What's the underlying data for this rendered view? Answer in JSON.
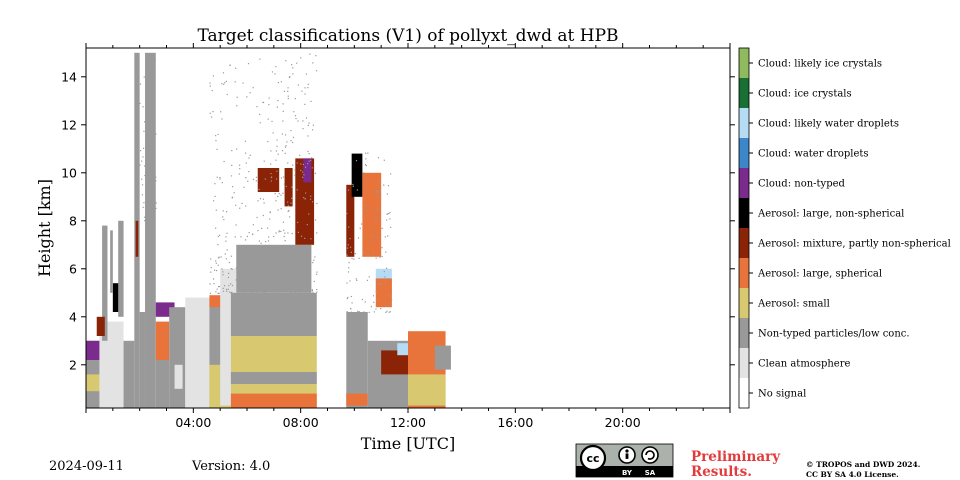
{
  "chart_data": {
    "type": "heatmap",
    "title": "Target classifications (V1) of pollyxt_dwd at HPB",
    "xlabel": "Time [UTC]",
    "ylabel": "Height [km]",
    "xlim_hours": [
      0,
      24
    ],
    "ylim_km": [
      0.2,
      15.2
    ],
    "x_ticks": [
      "04:00",
      "08:00",
      "12:00",
      "16:00",
      "20:00"
    ],
    "x_tick_hours": [
      4,
      8,
      12,
      16,
      20
    ],
    "y_ticks": [
      "2",
      "4",
      "6",
      "8",
      "10",
      "12",
      "14"
    ],
    "y_tick_values": [
      2,
      4,
      6,
      8,
      10,
      12,
      14
    ],
    "legend_position": "right colorbar",
    "categories": [
      {
        "label": "No signal",
        "color": "#ffffff"
      },
      {
        "label": "Clean atmosphere",
        "color": "#e3e3e3"
      },
      {
        "label": "Non-typed particles/low conc.",
        "color": "#999999"
      },
      {
        "label": "Aerosol: small",
        "color": "#d8c86f"
      },
      {
        "label": "Aerosol: large, spherical",
        "color": "#e8743b"
      },
      {
        "label": "Aerosol: mixture, partly non-spherical",
        "color": "#8b2307"
      },
      {
        "label": "Aerosol: large, non-spherical",
        "color": "#000000"
      },
      {
        "label": "Cloud: non-typed",
        "color": "#7b2a8e"
      },
      {
        "label": "Cloud: water droplets",
        "color": "#3c87c9"
      },
      {
        "label": "Cloud: likely water droplets",
        "color": "#b6dcf5"
      },
      {
        "label": "Cloud: ice crystals",
        "color": "#187035"
      },
      {
        "label": "Cloud: likely ice crystals",
        "color": "#8fbb5e"
      }
    ],
    "regions": [
      {
        "t0": 0.0,
        "t1": 0.6,
        "h0": 0.2,
        "h1": 3.0,
        "cls": "Non-typed particles/low conc."
      },
      {
        "t0": 0.0,
        "t1": 0.6,
        "h0": 0.9,
        "h1": 1.6,
        "cls": "Aerosol: small"
      },
      {
        "t0": 0.0,
        "t1": 0.6,
        "h0": 2.2,
        "h1": 3.0,
        "cls": "Cloud: non-typed"
      },
      {
        "t0": 0.5,
        "t1": 1.4,
        "h0": 0.2,
        "h1": 3.8,
        "cls": "Clean atmosphere"
      },
      {
        "t0": 0.6,
        "t1": 0.8,
        "h0": 3.0,
        "h1": 7.8,
        "cls": "Non-typed particles/low conc."
      },
      {
        "t0": 0.4,
        "t1": 0.7,
        "h0": 3.2,
        "h1": 4.0,
        "cls": "Aerosol: mixture, partly non-spherical"
      },
      {
        "t0": 1.0,
        "t1": 1.3,
        "h0": 4.2,
        "h1": 5.4,
        "cls": "Aerosol: large, non-spherical"
      },
      {
        "t0": 1.2,
        "t1": 1.4,
        "h0": 4.0,
        "h1": 8.0,
        "cls": "Non-typed particles/low conc."
      },
      {
        "t0": 0.9,
        "t1": 1.0,
        "h0": 5.0,
        "h1": 7.6,
        "cls": "Non-typed particles/low conc."
      },
      {
        "t0": 1.4,
        "t1": 1.8,
        "h0": 0.2,
        "h1": 3.0,
        "cls": "Non-typed particles/low conc."
      },
      {
        "t0": 1.8,
        "t1": 2.0,
        "h0": 0.2,
        "h1": 15.0,
        "cls": "Non-typed particles/low conc."
      },
      {
        "t0": 1.85,
        "t1": 1.95,
        "h0": 6.5,
        "h1": 8.0,
        "cls": "Aerosol: mixture, partly non-spherical"
      },
      {
        "t0": 2.0,
        "t1": 2.2,
        "h0": 0.2,
        "h1": 4.2,
        "cls": "Non-typed particles/low conc."
      },
      {
        "t0": 2.2,
        "t1": 2.6,
        "h0": 0.2,
        "h1": 15.0,
        "cls": "Non-typed particles/low conc."
      },
      {
        "t0": 2.6,
        "t1": 3.1,
        "h0": 0.2,
        "h1": 2.2,
        "cls": "Non-typed particles/low conc."
      },
      {
        "t0": 2.6,
        "t1": 3.1,
        "h0": 2.2,
        "h1": 3.8,
        "cls": "Aerosol: large, spherical"
      },
      {
        "t0": 2.6,
        "t1": 3.3,
        "h0": 4.0,
        "h1": 4.6,
        "cls": "Cloud: non-typed"
      },
      {
        "t0": 3.1,
        "t1": 3.7,
        "h0": 0.2,
        "h1": 4.4,
        "cls": "Non-typed particles/low conc."
      },
      {
        "t0": 3.3,
        "t1": 3.6,
        "h0": 1.0,
        "h1": 2.0,
        "cls": "Clean atmosphere"
      },
      {
        "t0": 3.7,
        "t1": 4.6,
        "h0": 0.2,
        "h1": 4.8,
        "cls": "Clean atmosphere"
      },
      {
        "t0": 4.6,
        "t1": 5.4,
        "h0": 0.2,
        "h1": 4.8,
        "cls": "Non-typed particles/low conc."
      },
      {
        "t0": 4.6,
        "t1": 5.4,
        "h0": 0.2,
        "h1": 2.0,
        "cls": "Aerosol: small"
      },
      {
        "t0": 4.6,
        "t1": 5.2,
        "h0": 4.4,
        "h1": 4.9,
        "cls": "Aerosol: large, spherical"
      },
      {
        "t0": 5.0,
        "t1": 5.6,
        "h0": 0.3,
        "h1": 6.0,
        "cls": "Clean atmosphere"
      },
      {
        "t0": 5.4,
        "t1": 8.6,
        "h0": 0.2,
        "h1": 3.2,
        "cls": "Aerosol: small"
      },
      {
        "t0": 5.4,
        "t1": 8.6,
        "h0": 0.2,
        "h1": 0.8,
        "cls": "Aerosol: large, spherical"
      },
      {
        "t0": 5.4,
        "t1": 8.6,
        "h0": 1.2,
        "h1": 1.7,
        "cls": "Non-typed particles/low conc."
      },
      {
        "t0": 5.4,
        "t1": 8.6,
        "h0": 3.2,
        "h1": 5.0,
        "cls": "Non-typed particles/low conc."
      },
      {
        "t0": 5.6,
        "t1": 8.4,
        "h0": 5.0,
        "h1": 7.0,
        "cls": "Non-typed particles/low conc."
      },
      {
        "t0": 6.4,
        "t1": 7.2,
        "h0": 9.2,
        "h1": 10.2,
        "cls": "Aerosol: mixture, partly non-spherical"
      },
      {
        "t0": 7.4,
        "t1": 7.7,
        "h0": 8.6,
        "h1": 10.2,
        "cls": "Aerosol: mixture, partly non-spherical"
      },
      {
        "t0": 7.8,
        "t1": 8.5,
        "h0": 7.0,
        "h1": 10.6,
        "cls": "Aerosol: mixture, partly non-spherical"
      },
      {
        "t0": 8.1,
        "t1": 8.4,
        "h0": 9.6,
        "h1": 10.6,
        "cls": "Cloud: non-typed"
      },
      {
        "t0": 9.7,
        "t1": 10.5,
        "h0": 0.2,
        "h1": 4.2,
        "cls": "Non-typed particles/low conc."
      },
      {
        "t0": 9.7,
        "t1": 10.5,
        "h0": 0.3,
        "h1": 0.8,
        "cls": "Aerosol: large, spherical"
      },
      {
        "t0": 9.7,
        "t1": 10.0,
        "h0": 6.5,
        "h1": 9.5,
        "cls": "Aerosol: mixture, partly non-spherical"
      },
      {
        "t0": 9.9,
        "t1": 10.3,
        "h0": 9.0,
        "h1": 10.8,
        "cls": "Aerosol: large, non-spherical"
      },
      {
        "t0": 10.3,
        "t1": 11.0,
        "h0": 6.5,
        "h1": 10.0,
        "cls": "Aerosol: large, spherical"
      },
      {
        "t0": 10.5,
        "t1": 12.0,
        "h0": 0.2,
        "h1": 3.0,
        "cls": "Non-typed particles/low conc."
      },
      {
        "t0": 10.8,
        "t1": 11.4,
        "h0": 5.0,
        "h1": 6.0,
        "cls": "Cloud: likely water droplets"
      },
      {
        "t0": 10.8,
        "t1": 11.4,
        "h0": 4.4,
        "h1": 5.6,
        "cls": "Aerosol: large, spherical"
      },
      {
        "t0": 11.0,
        "t1": 12.0,
        "h0": 1.6,
        "h1": 2.6,
        "cls": "Aerosol: mixture, partly non-spherical"
      },
      {
        "t0": 11.6,
        "t1": 12.0,
        "h0": 2.4,
        "h1": 2.9,
        "cls": "Cloud: likely water droplets"
      },
      {
        "t0": 12.0,
        "t1": 13.4,
        "h0": 0.2,
        "h1": 3.4,
        "cls": "Aerosol: large, spherical"
      },
      {
        "t0": 12.0,
        "t1": 13.4,
        "h0": 0.3,
        "h1": 1.6,
        "cls": "Aerosol: small"
      },
      {
        "t0": 13.0,
        "t1": 13.6,
        "h0": 1.8,
        "h1": 2.8,
        "cls": "Non-typed particles/low conc."
      }
    ]
  },
  "footer": {
    "date": "2024-09-11",
    "version": "Version: 4.0",
    "license_badge": {
      "main": "cc",
      "left": "BY",
      "right": "SA"
    },
    "preliminary_line1": "Preliminary",
    "preliminary_line2": "Results.",
    "copyright_line1": "© TROPOS and DWD 2024.",
    "copyright_line2": "CC BY SA 4.0 License."
  }
}
